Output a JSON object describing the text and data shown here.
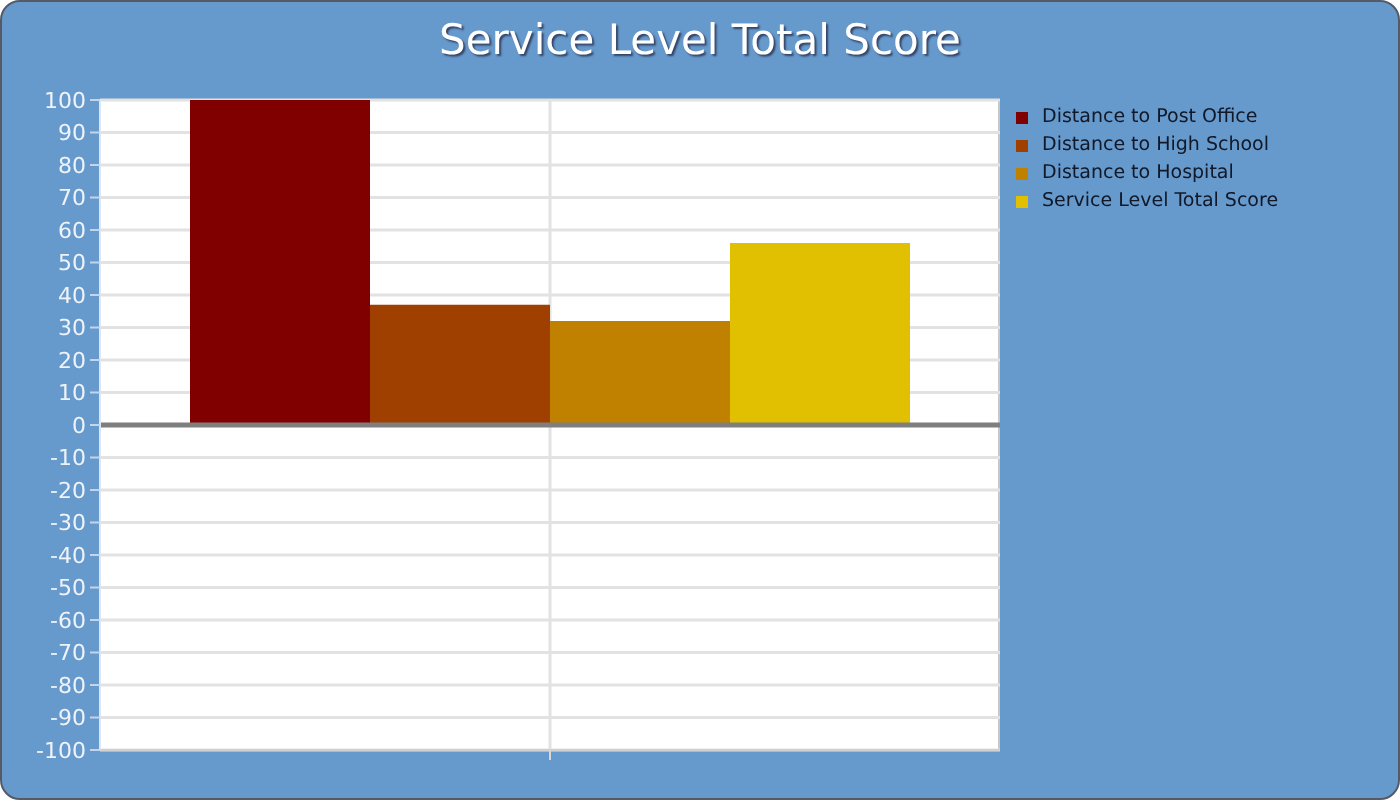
{
  "chart_data": {
    "type": "bar",
    "title": "Service Level Total Score",
    "categories": [
      null
    ],
    "series": [
      {
        "name": "Distance to Post Office",
        "color": "#800000",
        "values": [
          100
        ]
      },
      {
        "name": "Distance to High School",
        "color": "#a04000",
        "values": [
          37
        ]
      },
      {
        "name": "Distance to Hospital",
        "color": "#c08000",
        "values": [
          32
        ]
      },
      {
        "name": "Service Level Total Score",
        "color": "#e0c000",
        "values": [
          56
        ]
      }
    ],
    "ylim": [
      -100,
      100
    ],
    "yticks": [
      -100,
      -90,
      -80,
      -70,
      -60,
      -50,
      -40,
      -30,
      -20,
      -10,
      0,
      10,
      20,
      30,
      40,
      50,
      60,
      70,
      80,
      90,
      100
    ],
    "grid": true,
    "legend": "top right",
    "tick_labels": "y",
    "ref_lines": [
      {
        "axis": "y",
        "value": 0,
        "color": "#7f7f7f"
      }
    ]
  }
}
